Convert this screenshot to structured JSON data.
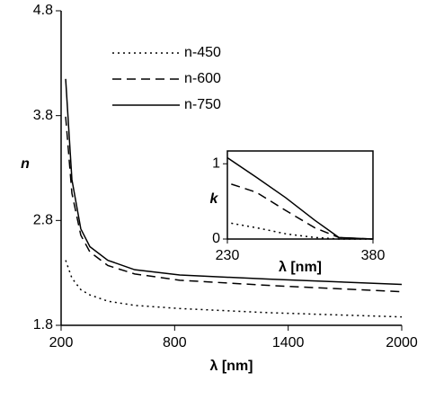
{
  "chart_data": [
    {
      "type": "line",
      "ylabel": "n",
      "xlabel": "λ [nm]",
      "xlim": [
        200,
        2000
      ],
      "xticks": [
        200,
        800,
        1400,
        2000
      ],
      "ylim": [
        1.8,
        4.8
      ],
      "yticks": [
        1.8,
        2.8,
        3.8,
        4.8
      ],
      "legend": "upper left",
      "frame": false,
      "series": [
        {
          "name": "n-450",
          "color": "#000000",
          "dash": "dotted",
          "x": [
            224,
            257,
            304,
            352,
            447,
            589,
            827,
            1302,
            2000
          ],
          "values": [
            2.42,
            2.25,
            2.14,
            2.09,
            2.03,
            1.99,
            1.96,
            1.92,
            1.88
          ]
        },
        {
          "name": "n-600",
          "color": "#000000",
          "dash": "dashed",
          "x": [
            224,
            257,
            304,
            352,
            447,
            589,
            827,
            1302,
            2000
          ],
          "values": [
            3.79,
            3.06,
            2.66,
            2.5,
            2.37,
            2.29,
            2.23,
            2.18,
            2.12
          ]
        },
        {
          "name": "n-750",
          "color": "#000000",
          "dash": "solid",
          "x": [
            224,
            257,
            304,
            352,
            447,
            589,
            827,
            1302,
            2000
          ],
          "values": [
            4.15,
            3.19,
            2.72,
            2.55,
            2.42,
            2.33,
            2.28,
            2.24,
            2.19
          ]
        }
      ]
    },
    {
      "type": "line",
      "ylabel": "k",
      "xlabel": "λ [nm]",
      "xlim": [
        230,
        380
      ],
      "xticks": [
        230,
        380
      ],
      "ylim": [
        0,
        1.17
      ],
      "yticks": [
        0,
        1
      ],
      "frame": true,
      "series": [
        {
          "color": "#000000",
          "dash": "dotted",
          "x": [
            234,
            260,
            290,
            320,
            345,
            380
          ],
          "values": [
            0.21,
            0.15,
            0.07,
            0.02,
            0,
            0
          ]
        },
        {
          "color": "#000000",
          "dash": "dashed",
          "x": [
            234,
            260,
            290,
            320,
            345,
            380
          ],
          "values": [
            0.73,
            0.62,
            0.38,
            0.15,
            0.02,
            0
          ]
        },
        {
          "color": "#000000",
          "dash": "solid",
          "x": [
            230,
            260,
            290,
            320,
            345,
            380
          ],
          "values": [
            1.08,
            0.82,
            0.55,
            0.25,
            0.02,
            0
          ]
        }
      ]
    }
  ]
}
